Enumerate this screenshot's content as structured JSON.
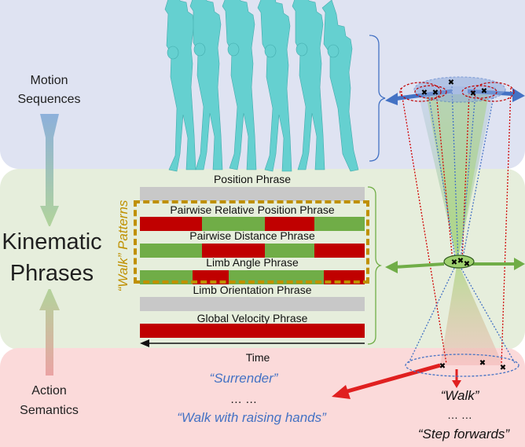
{
  "left_labels": {
    "motion_sequences_line1": "Motion",
    "motion_sequences_line2": "Sequences",
    "kinematic_line1": "Kinematic",
    "kinematic_line2": "Phrases",
    "action_line1": "Action",
    "action_line2": "Semantics"
  },
  "phrases": [
    {
      "title": "Position Phrase",
      "segments": [
        {
          "color": "#c8c8c8",
          "flex": 1
        }
      ]
    },
    {
      "title": "Pairwise Relative Position Phrase",
      "segments": [
        {
          "color": "#c00000",
          "flex": 25
        },
        {
          "color": "#70ad47",
          "flex": 25
        },
        {
          "color": "#c00000",
          "flex": 20
        },
        {
          "color": "#70ad47",
          "flex": 20
        }
      ]
    },
    {
      "title": "Pairwise Distance Phrase",
      "segments": [
        {
          "color": "#70ad47",
          "flex": 25
        },
        {
          "color": "#c00000",
          "flex": 25
        },
        {
          "color": "#70ad47",
          "flex": 20
        },
        {
          "color": "#c00000",
          "flex": 20
        }
      ]
    },
    {
      "title": "Limb Angle Phrase",
      "segments": [
        {
          "color": "#70ad47",
          "flex": 22
        },
        {
          "color": "#c00000",
          "flex": 15
        },
        {
          "color": "#70ad47",
          "flex": 40
        },
        {
          "color": "#c00000",
          "flex": 17
        }
      ]
    },
    {
      "title": "Limb Orientation Phrase",
      "segments": [
        {
          "color": "#c8c8c8",
          "flex": 1
        }
      ]
    },
    {
      "title": "Global Velocity Phrase",
      "segments": [
        {
          "color": "#c00000",
          "flex": 1
        }
      ]
    }
  ],
  "walk_patterns_label": "“Walk” Patterns",
  "time_label": "Time",
  "semantics": {
    "surrender": "“Surrender”",
    "dots_left": "… …",
    "walk_raising": "“Walk with raising hands”",
    "walk": "“Walk”",
    "dots_right": "… …",
    "step_forwards": "“Step forwards”"
  },
  "colors": {
    "top_band": "#dfe3f2",
    "middle_band": "#e6eedc",
    "bottom_band": "#fbdada",
    "red": "#c00000",
    "green": "#70ad47",
    "gray": "#c8c8c8",
    "gold": "#bf9000",
    "blue_text": "#4472c4",
    "figure": "#5fcfcf"
  }
}
